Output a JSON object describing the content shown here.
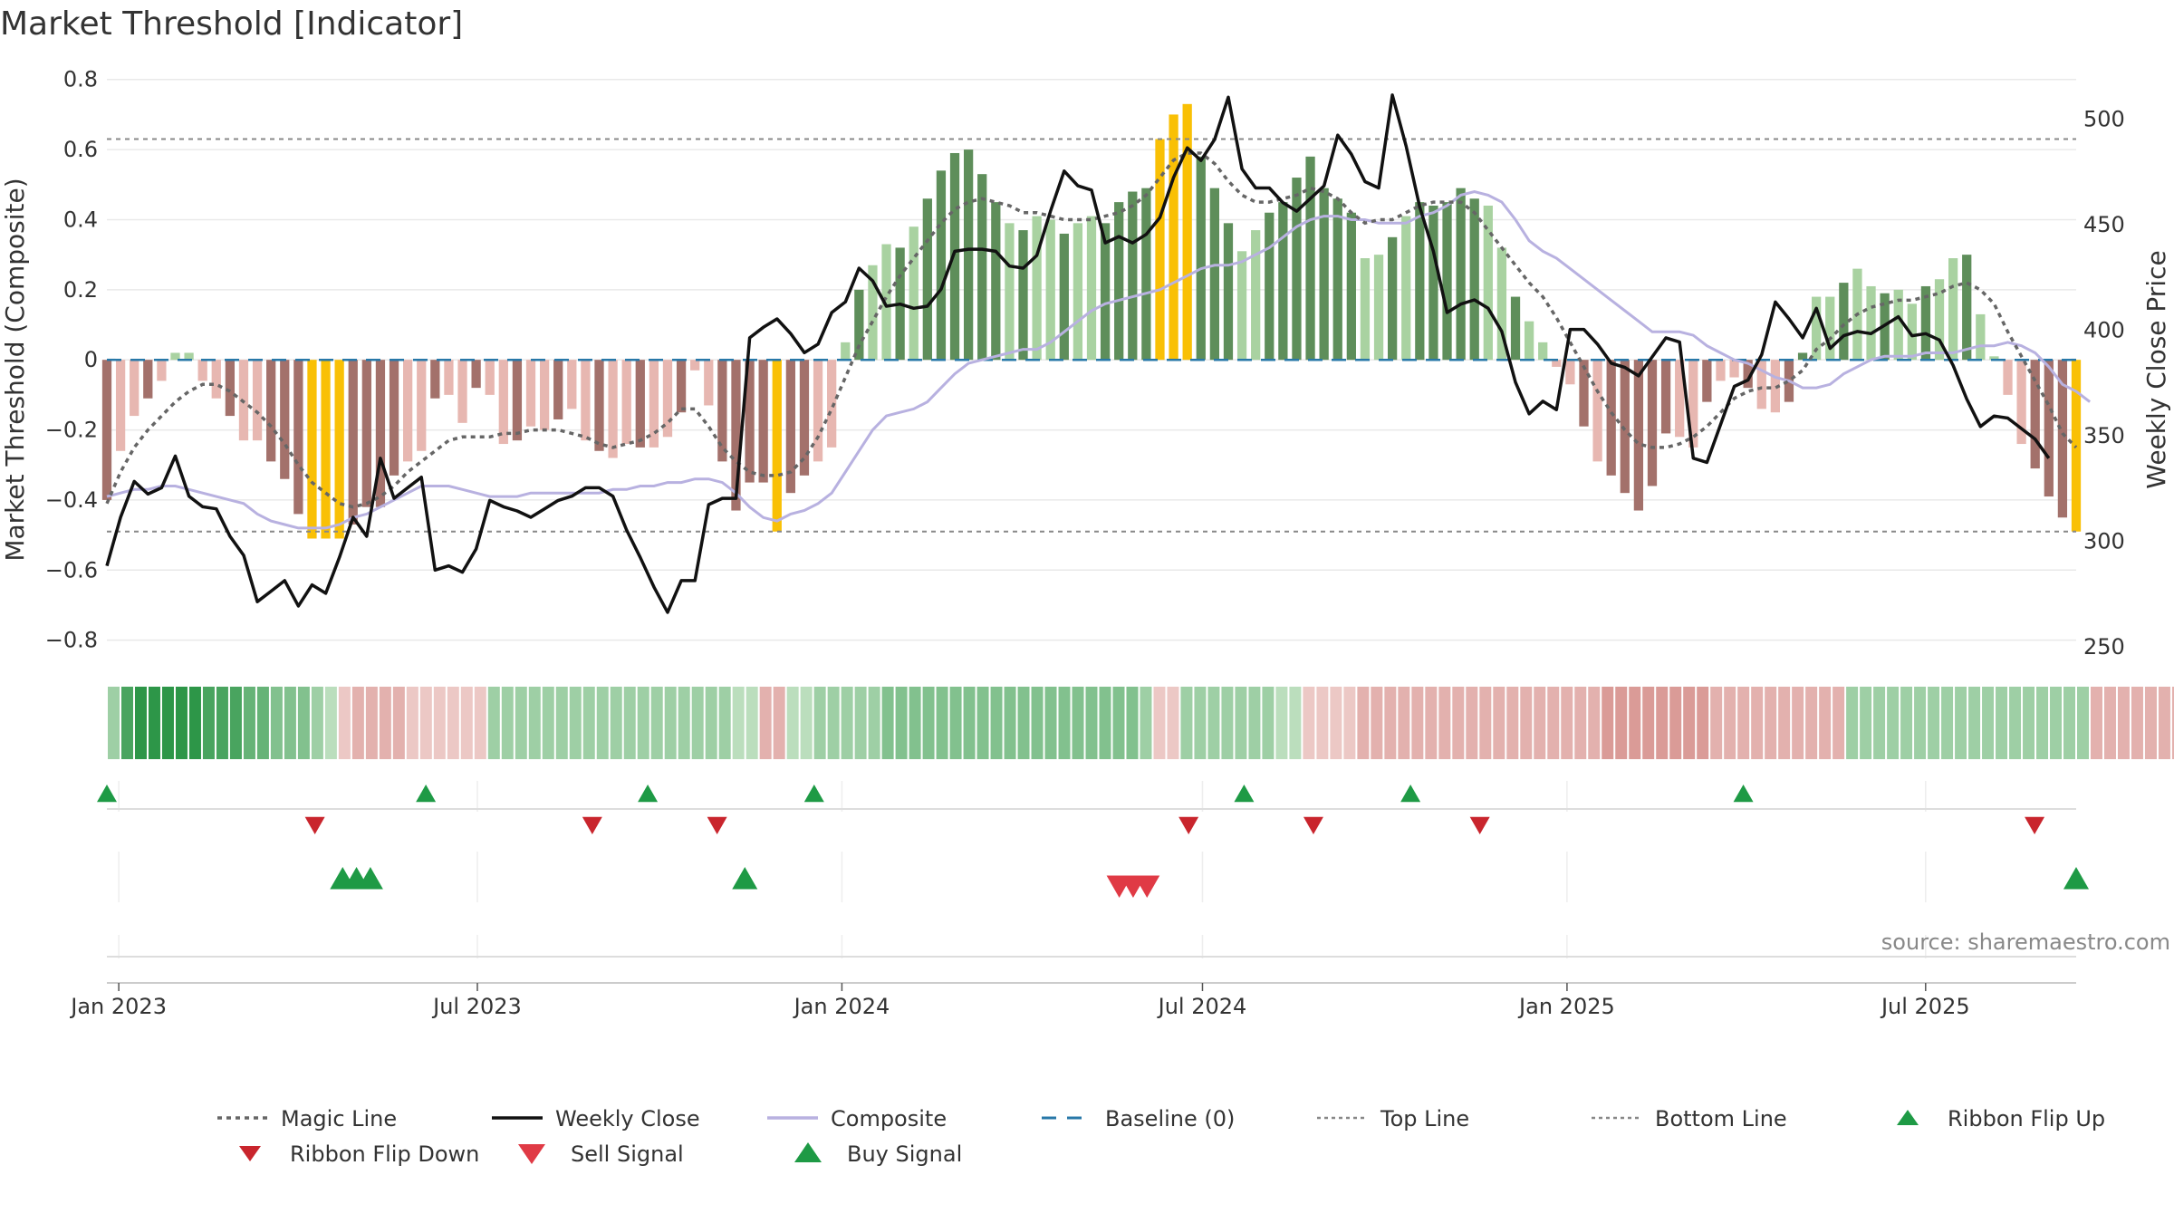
{
  "chart_data": {
    "type": "bar",
    "title": "Market Threshold [Indicator]",
    "ylabel_left": "Market Threshold (Composite)",
    "ylabel_right": "Weekly Close Price",
    "ylim_left": [
      -0.85,
      0.82
    ],
    "ylim_right": [
      244.5,
      521.7
    ],
    "yticks_left": [
      "0.8",
      "0.6",
      "0.4",
      "0.2",
      "0",
      "−0.2",
      "−0.4",
      "−0.6",
      "−0.8"
    ],
    "yticks_left_values": [
      0.8,
      0.6,
      0.4,
      0.2,
      0,
      -0.2,
      -0.4,
      -0.6,
      -0.8
    ],
    "yticks_right": [
      "500",
      "450",
      "400",
      "350",
      "300",
      "250"
    ],
    "yticks_right_values": [
      500,
      450,
      400,
      350,
      300,
      250
    ],
    "x_start": "2022-12-26",
    "x_end": "2025-09-15",
    "xticks": [
      {
        "date": "2023-01-01",
        "label": "Jan 2023"
      },
      {
        "date": "2023-07-01",
        "label": "Jul 2023"
      },
      {
        "date": "2024-01-01",
        "label": "Jan 2024"
      },
      {
        "date": "2024-07-01",
        "label": "Jul 2024"
      },
      {
        "date": "2025-01-01",
        "label": "Jan 2025"
      },
      {
        "date": "2025-07-01",
        "label": "Jul 2025"
      }
    ],
    "top_line": 0.63,
    "bottom_line": -0.49,
    "baseline": 0,
    "composite_bars": [
      -0.4,
      -0.26,
      -0.16,
      -0.11,
      -0.06,
      0.02,
      0.02,
      -0.06,
      -0.11,
      -0.16,
      -0.23,
      -0.23,
      -0.29,
      -0.34,
      -0.44,
      -0.51,
      -0.51,
      -0.51,
      -0.47,
      -0.42,
      -0.42,
      -0.33,
      -0.29,
      -0.26,
      -0.11,
      -0.1,
      -0.18,
      -0.08,
      -0.1,
      -0.24,
      -0.23,
      -0.19,
      -0.2,
      -0.17,
      -0.14,
      -0.23,
      -0.26,
      -0.28,
      -0.24,
      -0.25,
      -0.25,
      -0.22,
      -0.15,
      -0.03,
      -0.13,
      -0.29,
      -0.43,
      -0.35,
      -0.35,
      -0.49,
      -0.38,
      -0.33,
      -0.29,
      -0.25,
      0.05,
      0.2,
      0.27,
      0.33,
      0.32,
      0.38,
      0.46,
      0.54,
      0.59,
      0.6,
      0.53,
      0.45,
      0.39,
      0.37,
      0.41,
      0.4,
      0.36,
      0.39,
      0.41,
      0.39,
      0.45,
      0.48,
      0.49,
      0.63,
      0.7,
      0.73,
      0.58,
      0.49,
      0.39,
      0.31,
      0.37,
      0.42,
      0.45,
      0.52,
      0.58,
      0.49,
      0.46,
      0.42,
      0.29,
      0.3,
      0.35,
      0.41,
      0.45,
      0.44,
      0.45,
      0.49,
      0.46,
      0.44,
      0.32,
      0.18,
      0.11,
      0.05,
      -0.02,
      -0.07,
      -0.19,
      -0.29,
      -0.33,
      -0.38,
      -0.43,
      -0.36,
      -0.21,
      -0.22,
      -0.25,
      -0.12,
      -0.06,
      -0.05,
      -0.08,
      -0.14,
      -0.15,
      -0.12,
      0.02,
      0.18,
      0.18,
      0.22,
      0.26,
      0.21,
      0.19,
      0.2,
      0.16,
      0.21,
      0.23,
      0.29,
      0.3,
      0.13,
      0.01,
      -0.1,
      -0.24,
      -0.31,
      -0.39,
      -0.45,
      -0.49
    ],
    "weekly_close": [
      288,
      311,
      328,
      322,
      325,
      340,
      321,
      316,
      315,
      302,
      293,
      271,
      276,
      281,
      269,
      279,
      275,
      292,
      311,
      302,
      339,
      320,
      325,
      330,
      286,
      288,
      285,
      296,
      319,
      316,
      314,
      311,
      315,
      319,
      321,
      325,
      325,
      321,
      305,
      292,
      278,
      266,
      281,
      281,
      317,
      320,
      320,
      396,
      401,
      405,
      398,
      389,
      393,
      408,
      413,
      429,
      423,
      411,
      412,
      410,
      411,
      419,
      437,
      438,
      438,
      437,
      430,
      429,
      435,
      456,
      475,
      468,
      466,
      441,
      444,
      441,
      445,
      453,
      472,
      486,
      480,
      490,
      510,
      476,
      467,
      467,
      460,
      456,
      462,
      468,
      492,
      483,
      470,
      467,
      511,
      487,
      458,
      437,
      408,
      412,
      414,
      410,
      399,
      375,
      360,
      366,
      362,
      400,
      400,
      393,
      384,
      382,
      378,
      387,
      396,
      394,
      339,
      337,
      355,
      373,
      376,
      388,
      413,
      405,
      396,
      410,
      391,
      397,
      399,
      398,
      402,
      406,
      397,
      398,
      395,
      383,
      367,
      354,
      359,
      358,
      353,
      348,
      339
    ],
    "composite_line": [
      -0.39,
      -0.38,
      -0.37,
      -0.37,
      -0.36,
      -0.36,
      -0.37,
      -0.38,
      -0.39,
      -0.4,
      -0.41,
      -0.44,
      -0.46,
      -0.47,
      -0.48,
      -0.48,
      -0.48,
      -0.47,
      -0.45,
      -0.44,
      -0.42,
      -0.4,
      -0.38,
      -0.36,
      -0.36,
      -0.36,
      -0.37,
      -0.38,
      -0.39,
      -0.39,
      -0.39,
      -0.38,
      -0.38,
      -0.38,
      -0.38,
      -0.38,
      -0.38,
      -0.37,
      -0.37,
      -0.36,
      -0.36,
      -0.35,
      -0.35,
      -0.34,
      -0.34,
      -0.35,
      -0.38,
      -0.42,
      -0.45,
      -0.46,
      -0.44,
      -0.43,
      -0.41,
      -0.38,
      -0.32,
      -0.26,
      -0.2,
      -0.16,
      -0.15,
      -0.14,
      -0.12,
      -0.08,
      -0.04,
      -0.01,
      0.0,
      0.01,
      0.02,
      0.03,
      0.03,
      0.05,
      0.08,
      0.11,
      0.14,
      0.16,
      0.17,
      0.18,
      0.19,
      0.2,
      0.22,
      0.24,
      0.26,
      0.27,
      0.27,
      0.28,
      0.3,
      0.32,
      0.35,
      0.38,
      0.4,
      0.41,
      0.41,
      0.4,
      0.4,
      0.39,
      0.39,
      0.39,
      0.41,
      0.42,
      0.44,
      0.47,
      0.48,
      0.47,
      0.45,
      0.4,
      0.34,
      0.31,
      0.29,
      0.26,
      0.23,
      0.2,
      0.17,
      0.14,
      0.11,
      0.08,
      0.08,
      0.08,
      0.07,
      0.04,
      0.02,
      0.0,
      -0.01,
      -0.03,
      -0.05,
      -0.06,
      -0.08,
      -0.08,
      -0.07,
      -0.04,
      -0.02,
      0.0,
      0.01,
      0.01,
      0.01,
      0.02,
      0.02,
      0.02,
      0.03,
      0.04,
      0.04,
      0.05,
      0.04,
      0.02,
      -0.02,
      -0.07,
      -0.09,
      -0.12
    ],
    "magic_line": [
      -0.41,
      -0.32,
      -0.25,
      -0.2,
      -0.16,
      -0.12,
      -0.09,
      -0.07,
      -0.07,
      -0.09,
      -0.12,
      -0.15,
      -0.19,
      -0.24,
      -0.3,
      -0.35,
      -0.38,
      -0.41,
      -0.42,
      -0.41,
      -0.39,
      -0.36,
      -0.32,
      -0.29,
      -0.26,
      -0.23,
      -0.22,
      -0.22,
      -0.22,
      -0.21,
      -0.21,
      -0.2,
      -0.2,
      -0.2,
      -0.21,
      -0.22,
      -0.24,
      -0.25,
      -0.24,
      -0.23,
      -0.21,
      -0.18,
      -0.14,
      -0.14,
      -0.19,
      -0.25,
      -0.29,
      -0.32,
      -0.33,
      -0.33,
      -0.32,
      -0.28,
      -0.22,
      -0.14,
      -0.05,
      0.04,
      0.11,
      0.18,
      0.24,
      0.29,
      0.34,
      0.39,
      0.43,
      0.45,
      0.46,
      0.45,
      0.44,
      0.42,
      0.42,
      0.41,
      0.4,
      0.4,
      0.4,
      0.41,
      0.42,
      0.44,
      0.47,
      0.52,
      0.57,
      0.59,
      0.59,
      0.56,
      0.51,
      0.47,
      0.45,
      0.45,
      0.46,
      0.47,
      0.49,
      0.48,
      0.46,
      0.42,
      0.39,
      0.4,
      0.4,
      0.42,
      0.44,
      0.45,
      0.45,
      0.45,
      0.42,
      0.37,
      0.32,
      0.27,
      0.22,
      0.18,
      0.12,
      0.05,
      -0.02,
      -0.09,
      -0.15,
      -0.2,
      -0.24,
      -0.25,
      -0.25,
      -0.24,
      -0.22,
      -0.19,
      -0.15,
      -0.11,
      -0.09,
      -0.08,
      -0.08,
      -0.06,
      -0.03,
      0.03,
      0.06,
      0.1,
      0.13,
      0.15,
      0.16,
      0.17,
      0.17,
      0.18,
      0.19,
      0.21,
      0.22,
      0.2,
      0.16,
      0.08,
      0.01,
      -0.06,
      -0.13,
      -0.21,
      -0.25
    ],
    "ribbon_strength": [
      2,
      5,
      6,
      6,
      6,
      6,
      6,
      5,
      5,
      5,
      4,
      4,
      3,
      3,
      3,
      2,
      1,
      -1,
      -2,
      -2,
      -2,
      -2,
      -1,
      -1,
      -1,
      -1,
      -1,
      -1,
      2,
      2,
      2,
      2,
      2,
      2,
      2,
      2,
      2,
      2,
      2,
      2,
      2,
      2,
      2,
      2,
      2,
      2,
      1,
      1,
      -2,
      -2,
      1,
      1,
      2,
      2,
      2,
      2,
      2,
      3,
      3,
      3,
      3,
      3,
      3,
      3,
      3,
      3,
      3,
      3,
      3,
      3,
      3,
      3,
      3,
      3,
      3,
      3,
      2,
      -1,
      -1,
      2,
      2,
      2,
      2,
      2,
      2,
      2,
      1,
      1,
      -1,
      -1,
      -1,
      -1,
      -2,
      -2,
      -2,
      -2,
      -2,
      -2,
      -2,
      -2,
      -2,
      -2,
      -2,
      -2,
      -2,
      -2,
      -2,
      -2,
      -2,
      -2,
      -3,
      -3,
      -3,
      -3,
      -3,
      -3,
      -3,
      -3,
      -2,
      -2,
      -2,
      -2,
      -2,
      -2,
      -2,
      -2,
      -2,
      -2,
      2,
      2,
      2,
      2,
      2,
      2,
      2,
      2,
      2,
      2,
      2,
      2,
      2,
      2,
      2,
      2,
      2,
      2,
      -2,
      -2,
      -2,
      -2,
      -2,
      -2,
      -2,
      -2,
      -2
    ],
    "ribbon_flip_up": [
      "2022-12-26",
      "2023-06-05",
      "2023-09-25",
      "2023-12-18",
      "2024-07-22",
      "2024-10-14",
      "2025-03-31"
    ],
    "ribbon_flip_down": [
      "2023-04-10",
      "2023-08-28",
      "2023-10-30",
      "2024-06-24",
      "2024-08-26",
      "2024-11-18",
      "2025-08-25"
    ],
    "buy_signal": [
      "2023-04-24",
      "2023-05-01",
      "2023-05-08",
      "2023-11-13",
      "2025-09-15"
    ],
    "sell_signal": [
      "2024-05-20",
      "2024-05-27",
      "2024-06-03"
    ],
    "legend": [
      {
        "label": "Magic Line",
        "marker": "dotted-line"
      },
      {
        "label": "Weekly Close",
        "marker": "solid-line"
      },
      {
        "label": "Composite",
        "marker": "lavender-line"
      },
      {
        "label": "Baseline (0)",
        "marker": "dashed-line"
      },
      {
        "label": "Top Line",
        "marker": "dotted-gray-line"
      },
      {
        "label": "Bottom Line",
        "marker": "dotted-gray-line"
      },
      {
        "label": "Ribbon Flip Up",
        "marker": "triangle-up-green"
      },
      {
        "label": "Ribbon Flip Down",
        "marker": "triangle-down-red"
      },
      {
        "label": "Sell Signal",
        "marker": "triangle-down-red-large"
      },
      {
        "label": "Buy Signal",
        "marker": "triangle-up-green-large"
      }
    ],
    "legend_position": "bottom",
    "grid": true,
    "colors": {
      "strong_positive": "#5e8e5a",
      "weak_positive": "#a9d2a1",
      "strong_negative": "#a3716b",
      "weak_negative": "#e7b7b1",
      "extreme": "#f9c005",
      "close": "#111111",
      "magic": "#666666",
      "composite": "#b8b1e0",
      "baseline": "#2878a8",
      "threshold": "#888888",
      "up_marker": "#1e9a45",
      "down_marker": "#d62b34"
    }
  },
  "source_label": "source: sharemaestro.com"
}
